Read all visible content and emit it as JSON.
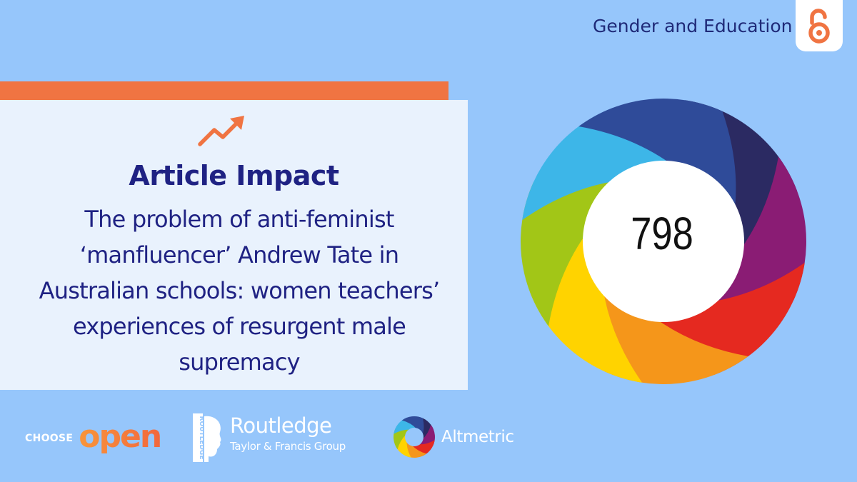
{
  "header": {
    "journal": "Gender and Education",
    "badge_icon": "open-access-icon"
  },
  "panel": {
    "headline": "Article Impact",
    "headline_icon": "trending-up-arrow-icon",
    "article_title": "The problem of anti-feminist ‘manfluencer’ Andrew Tate in Australian schools: women teachers’ experiences of resurgent male supremacy"
  },
  "altmetric_badge": {
    "score": "798",
    "ring_colors": [
      "#2b2a62",
      "#8a1c74",
      "#e52920",
      "#f5961a",
      "#ffd300",
      "#a2c617",
      "#3db6e8",
      "#2f4b99"
    ]
  },
  "footer": {
    "choose_label": "CHOOSE",
    "choose_word": "open",
    "publisher_name": "Routledge",
    "publisher_sub": "Taylor & Francis Group",
    "publisher_vertical": "ROUTLEDGE",
    "altmetric_name": "Altmetric"
  },
  "colors": {
    "background": "#96c6fb",
    "panel": "#e9f2fd",
    "accent": "#f07442",
    "heading": "#1f2283"
  }
}
